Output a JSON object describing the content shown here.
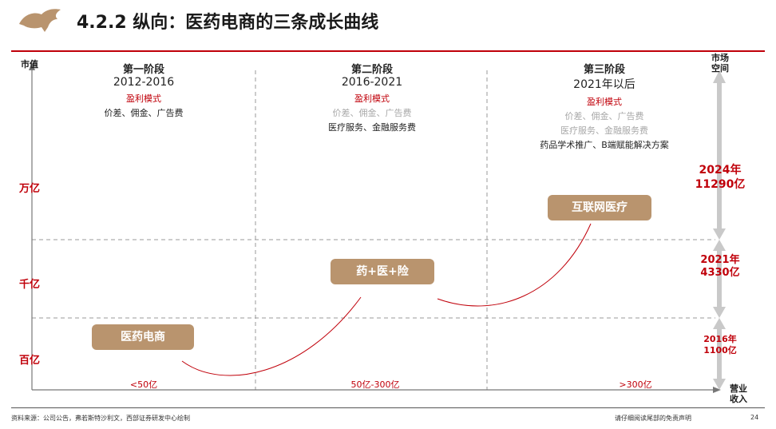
{
  "header": {
    "title": "4.2.2 纵向：医药电商的三条成长曲线",
    "logo": "bull-logo-icon"
  },
  "axes": {
    "y_label": "市值",
    "x_label": "营业收入",
    "right_label": "市场空间",
    "magnitudes": [
      "万亿",
      "千亿",
      "百亿"
    ]
  },
  "stages": [
    {
      "title": "第一阶段",
      "years": "2012-2016",
      "model_label": "盈利模式",
      "lines": [
        {
          "text": "价差、佣金、广告费",
          "gray": false
        }
      ],
      "curve_label": "医药电商",
      "revenue": "<50亿"
    },
    {
      "title": "第二阶段",
      "years": "2016-2021",
      "model_label": "盈利模式",
      "lines": [
        {
          "text": "价差、佣金、广告费",
          "gray": true
        },
        {
          "text": "医疗服务、金融服务费",
          "gray": false
        }
      ],
      "curve_label": "药+医+险",
      "revenue": "50亿-300亿"
    },
    {
      "title": "第三阶段",
      "years": "2021年以后",
      "model_label": "盈利模式",
      "lines": [
        {
          "text": "价差、佣金、广告费",
          "gray": true
        },
        {
          "text": "医疗服务、金融服务费",
          "gray": true
        },
        {
          "text": "药品学术推广、B端赋能解决方案",
          "gray": false
        }
      ],
      "curve_label": "互联网医疗",
      "revenue": ">300亿"
    }
  ],
  "market_space": [
    {
      "year": "2024年",
      "value": "11290亿"
    },
    {
      "year": "2021年",
      "value": "4330亿"
    },
    {
      "year": "2016年",
      "value": "1100亿"
    }
  ],
  "footer": {
    "source": "资料来源：公司公告，弗若斯特沙利文，西部证券研发中心绘制",
    "disclaimer": "请仔细阅读尾部的免责声明",
    "page": "24"
  },
  "colors": {
    "accent": "#c0000a",
    "pill": "#b9946e",
    "arrow": "#c9c9c9"
  }
}
